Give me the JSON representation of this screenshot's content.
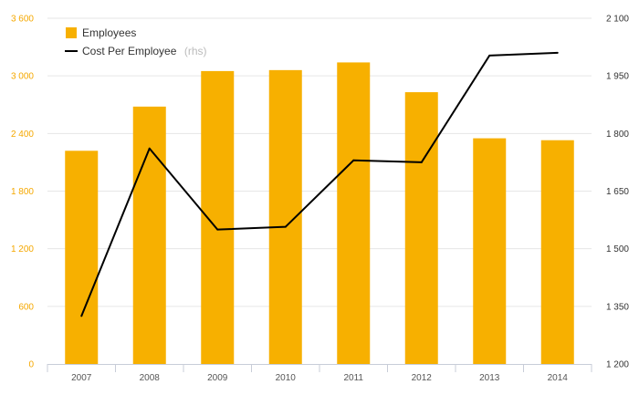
{
  "chart_data": {
    "type": "bar",
    "categories": [
      "2007",
      "2008",
      "2009",
      "2010",
      "2011",
      "2012",
      "2013",
      "2014"
    ],
    "series": [
      {
        "name": "Employees",
        "type": "bar",
        "axis": "left",
        "color": "#f7b000",
        "values": [
          2220,
          2680,
          3050,
          3060,
          3140,
          2830,
          2350,
          2330
        ]
      },
      {
        "name": "Cost Per Employee",
        "name_note": "(rhs)",
        "type": "line",
        "axis": "right",
        "color": "#000000",
        "values": [
          1325,
          1761,
          1550,
          1557,
          1730,
          1725,
          2003,
          2010
        ]
      }
    ],
    "left_axis": {
      "range": [
        0,
        3600
      ],
      "ticks": [
        0,
        600,
        1200,
        1800,
        2400,
        3000,
        3600
      ],
      "tick_labels": [
        "0",
        "600",
        "1 200",
        "1 800",
        "2 400",
        "3 000",
        "3 600"
      ],
      "label_color": "#f5a800"
    },
    "right_axis": {
      "range": [
        1200,
        2100
      ],
      "ticks": [
        1200,
        1350,
        1500,
        1650,
        1800,
        1950,
        2100
      ],
      "tick_labels": [
        "1 200",
        "1 350",
        "1 500",
        "1 650",
        "1 800",
        "1 950",
        "2 100"
      ],
      "label_color": "#333333"
    },
    "grid": true,
    "legend": "top-left",
    "gridline_color": "#e6e6e6"
  }
}
